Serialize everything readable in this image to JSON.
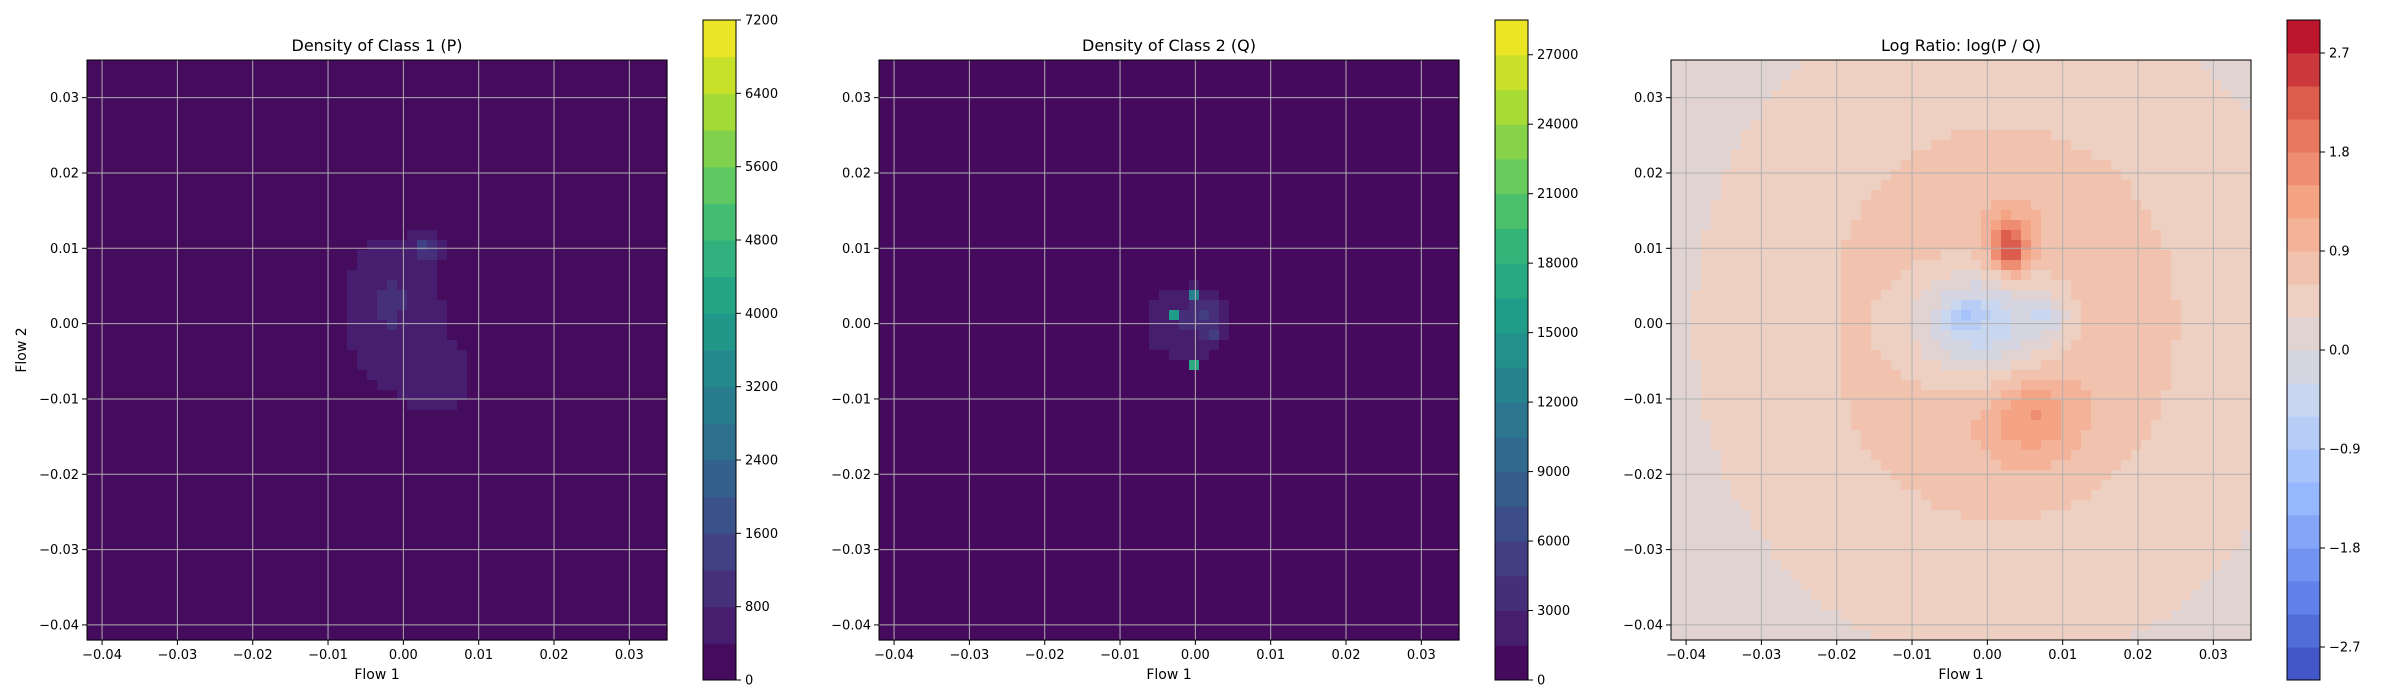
{
  "colors": {
    "viridis": [
      "#440154",
      "#482878",
      "#3e4989",
      "#31688e",
      "#26828e",
      "#1f9e89",
      "#35b779",
      "#6ece58",
      "#b5de2b",
      "#fde725"
    ],
    "rdbu_r": [
      "#3b4cc0",
      "#6788ee",
      "#9abbff",
      "#c9d7f0",
      "#edd1c2",
      "#f7a889",
      "#e26952",
      "#b40426"
    ],
    "grid": "#b0b0b0",
    "axes_edge": "#000000"
  },
  "chart_data": [
    {
      "type": "heatmap",
      "title": "Density of Class 1 (P)",
      "xlabel": "Flow 1",
      "ylabel": "Flow 2",
      "xlim": [
        -0.042,
        0.035
      ],
      "ylim": [
        -0.042,
        0.035
      ],
      "xticks": [
        -0.04,
        -0.03,
        -0.02,
        -0.01,
        0.0,
        0.01,
        0.02,
        0.03
      ],
      "xtick_labels": [
        "−0.04",
        "−0.03",
        "−0.02",
        "−0.01",
        "0.00",
        "0.01",
        "0.02",
        "0.03"
      ],
      "yticks": [
        0.03,
        0.02,
        0.01,
        0.0,
        -0.01,
        -0.02,
        -0.03,
        -0.04
      ],
      "ytick_labels": [
        "0.03",
        "0.02",
        "0.01",
        "0.00",
        "−0.01",
        "−0.02",
        "−0.03",
        "−0.04"
      ],
      "grid": true,
      "colormap": "viridis",
      "colorbar": {
        "min": 0,
        "max": 7200,
        "ticks": [
          0,
          800,
          1600,
          2400,
          3200,
          4000,
          4800,
          5600,
          6400,
          7200
        ],
        "tick_labels": [
          "0",
          "800",
          "1600",
          "2400",
          "3200",
          "4000",
          "4800",
          "5600",
          "6400",
          "7200"
        ],
        "levels": 18
      },
      "blobs": [
        {
          "x": 0.0,
          "y": 0.0,
          "sx": 0.0095,
          "sy": 0.013,
          "amp": 450
        },
        {
          "x": 0.003,
          "y": 0.01,
          "sx": 0.0012,
          "sy": 0.0012,
          "amp": 1000
        },
        {
          "x": -0.002,
          "y": 0.003,
          "sx": 0.003,
          "sy": 0.005,
          "amp": 450
        },
        {
          "x": 0.005,
          "y": -0.008,
          "sx": 0.003,
          "sy": 0.003,
          "amp": 350
        }
      ]
    },
    {
      "type": "heatmap",
      "title": "Density of Class 2 (Q)",
      "xlabel": "Flow 1",
      "ylabel": "",
      "xlim": [
        -0.042,
        0.035
      ],
      "ylim": [
        -0.042,
        0.035
      ],
      "xticks": [
        -0.04,
        -0.03,
        -0.02,
        -0.01,
        0.0,
        0.01,
        0.02,
        0.03
      ],
      "xtick_labels": [
        "−0.04",
        "−0.03",
        "−0.02",
        "−0.01",
        "0.00",
        "0.01",
        "0.02",
        "0.03"
      ],
      "yticks": [
        0.03,
        0.02,
        0.01,
        0.0,
        -0.01,
        -0.02,
        -0.03,
        -0.04
      ],
      "ytick_labels": [
        "0.03",
        "0.02",
        "0.01",
        "0.00",
        "−0.01",
        "−0.02",
        "−0.03",
        "−0.04"
      ],
      "grid": true,
      "colormap": "viridis",
      "colorbar": {
        "min": 0,
        "max": 28500,
        "ticks": [
          0,
          3000,
          6000,
          9000,
          12000,
          15000,
          18000,
          21000,
          24000,
          27000
        ],
        "tick_labels": [
          "0",
          "3000",
          "6000",
          "9000",
          "12000",
          "15000",
          "18000",
          "21000",
          "24000",
          "27000"
        ],
        "levels": 19
      },
      "blobs": [
        {
          "x": -0.001,
          "y": 0.0,
          "sx": 0.005,
          "sy": 0.0045,
          "amp": 2800
        },
        {
          "x": -0.0005,
          "y": 0.0035,
          "sx": 0.0004,
          "sy": 0.0004,
          "amp": 20000
        },
        {
          "x": -0.003,
          "y": 0.001,
          "sx": 0.0004,
          "sy": 0.0004,
          "amp": 16000
        },
        {
          "x": 0.002,
          "y": -0.002,
          "sx": 0.0004,
          "sy": 0.0004,
          "amp": 15000
        },
        {
          "x": 0.0,
          "y": -0.0055,
          "sx": 0.0004,
          "sy": 0.0004,
          "amp": 17000
        },
        {
          "x": 0.001,
          "y": 0.0015,
          "sx": 0.0015,
          "sy": 0.0015,
          "amp": 2500
        }
      ]
    },
    {
      "type": "heatmap",
      "title": "Log Ratio: log(P / Q)",
      "xlabel": "Flow 1",
      "ylabel": "",
      "xlim": [
        -0.042,
        0.035
      ],
      "ylim": [
        -0.042,
        0.035
      ],
      "xticks": [
        -0.04,
        -0.03,
        -0.02,
        -0.01,
        0.0,
        0.01,
        0.02,
        0.03
      ],
      "xtick_labels": [
        "−0.04",
        "−0.03",
        "−0.02",
        "−0.01",
        "0.00",
        "0.01",
        "0.02",
        "0.03"
      ],
      "yticks": [
        0.03,
        0.02,
        0.01,
        0.0,
        -0.01,
        -0.02,
        -0.03,
        -0.04
      ],
      "ytick_labels": [
        "0.03",
        "0.02",
        "0.01",
        "0.00",
        "−0.01",
        "−0.02",
        "−0.03",
        "−0.04"
      ],
      "grid": true,
      "colormap": "RdBu_r",
      "colorbar": {
        "min": -3.0,
        "max": 3.0,
        "ticks": [
          -2.7,
          -1.8,
          -0.9,
          0.0,
          0.9,
          1.8,
          2.7
        ],
        "tick_labels": [
          "−2.7",
          "−1.8",
          "−0.9",
          "0.0",
          "0.9",
          "1.8",
          "2.7"
        ],
        "levels": 20
      },
      "base_value": 0.25,
      "blobs": [
        {
          "x": 0.002,
          "y": 0.0,
          "sx": 0.017,
          "sy": 0.019,
          "amp": 0.9
        },
        {
          "x": 0.003,
          "y": 0.01,
          "sx": 0.0018,
          "sy": 0.0025,
          "amp": 1.8
        },
        {
          "x": 0.006,
          "y": -0.012,
          "sx": 0.004,
          "sy": 0.004,
          "amp": 0.7
        },
        {
          "x": 0.0,
          "y": 0.0,
          "sx": 0.0075,
          "sy": 0.006,
          "amp": -1.6
        },
        {
          "x": -0.003,
          "y": 0.001,
          "sx": 0.0018,
          "sy": 0.0018,
          "amp": -0.6
        },
        {
          "x": 0.008,
          "y": 0.001,
          "sx": 0.0016,
          "sy": 0.0016,
          "amp": -0.6
        }
      ]
    }
  ]
}
